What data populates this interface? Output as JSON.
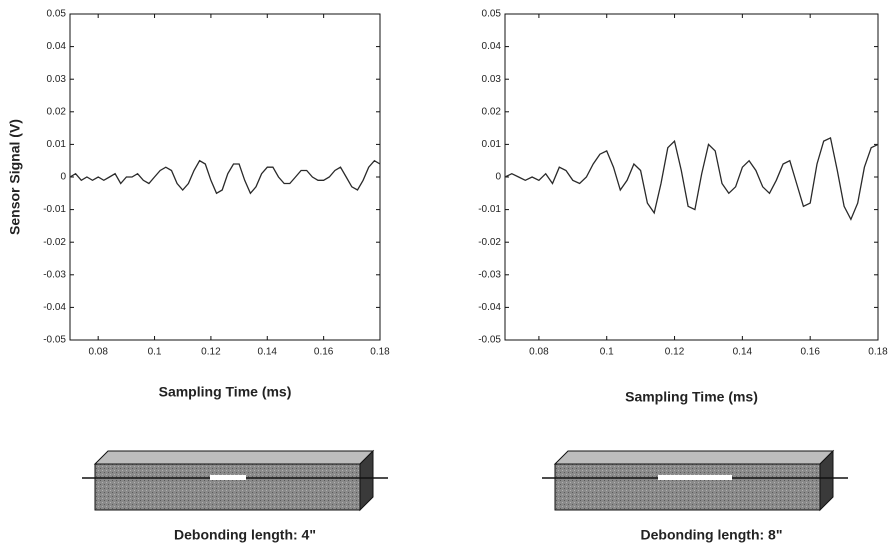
{
  "chart_data": [
    {
      "type": "line",
      "xlabel": "Sampling Time (ms)",
      "ylabel": "Sensor Signal (V)",
      "caption": "Debonding length: 4\"",
      "xlim": [
        0.07,
        0.18
      ],
      "xticks": [
        0.08,
        0.1,
        0.12,
        0.14,
        0.16,
        0.18
      ],
      "ylim": [
        -0.05,
        0.05
      ],
      "yticks": [
        -0.05,
        -0.04,
        -0.03,
        -0.02,
        -0.01,
        0,
        0.01,
        0.02,
        0.03,
        0.04,
        0.05
      ],
      "grid": false,
      "x": [
        0.07,
        0.072,
        0.074,
        0.076,
        0.078,
        0.08,
        0.082,
        0.084,
        0.086,
        0.088,
        0.09,
        0.092,
        0.094,
        0.096,
        0.098,
        0.1,
        0.102,
        0.104,
        0.106,
        0.108,
        0.11,
        0.112,
        0.114,
        0.116,
        0.118,
        0.12,
        0.122,
        0.124,
        0.126,
        0.128,
        0.13,
        0.132,
        0.134,
        0.136,
        0.138,
        0.14,
        0.142,
        0.144,
        0.146,
        0.148,
        0.15,
        0.152,
        0.154,
        0.156,
        0.158,
        0.16,
        0.162,
        0.164,
        0.166,
        0.168,
        0.17,
        0.172,
        0.174,
        0.176,
        0.178,
        0.18
      ],
      "series": [
        {
          "color": "#2a2a2a",
          "values": [
            0,
            0.001,
            -0.001,
            0,
            -0.001,
            0,
            -0.001,
            0,
            0.001,
            -0.002,
            0,
            0,
            0.001,
            -0.001,
            -0.002,
            0,
            0.002,
            0.003,
            0.002,
            -0.002,
            -0.004,
            -0.002,
            0.002,
            0.005,
            0.004,
            -0.001,
            -0.005,
            -0.004,
            0.001,
            0.004,
            0.004,
            -0.001,
            -0.005,
            -0.003,
            0.001,
            0.003,
            0.003,
            0,
            -0.002,
            -0.002,
            0,
            0.002,
            0.002,
            0,
            -0.001,
            -0.001,
            0,
            0.002,
            0.003,
            0,
            -0.003,
            -0.004,
            -0.001,
            0.003,
            0.005,
            0.004
          ]
        }
      ]
    },
    {
      "type": "line",
      "xlabel": "Sampling Time (ms)",
      "caption": "Debonding length: 8\"",
      "xlim": [
        0.07,
        0.18
      ],
      "xticks": [
        0.08,
        0.1,
        0.12,
        0.14,
        0.16,
        0.18
      ],
      "ylim": [
        -0.05,
        0.05
      ],
      "yticks": [
        -0.05,
        -0.04,
        -0.03,
        -0.02,
        -0.01,
        0,
        0.01,
        0.02,
        0.03,
        0.04,
        0.05
      ],
      "grid": false,
      "x": [
        0.07,
        0.072,
        0.074,
        0.076,
        0.078,
        0.08,
        0.082,
        0.084,
        0.086,
        0.088,
        0.09,
        0.092,
        0.094,
        0.096,
        0.098,
        0.1,
        0.102,
        0.104,
        0.106,
        0.108,
        0.11,
        0.112,
        0.114,
        0.116,
        0.118,
        0.12,
        0.122,
        0.124,
        0.126,
        0.128,
        0.13,
        0.132,
        0.134,
        0.136,
        0.138,
        0.14,
        0.142,
        0.144,
        0.146,
        0.148,
        0.15,
        0.152,
        0.154,
        0.156,
        0.158,
        0.16,
        0.162,
        0.164,
        0.166,
        0.168,
        0.17,
        0.172,
        0.174,
        0.176,
        0.178,
        0.18
      ],
      "series": [
        {
          "color": "#2a2a2a",
          "values": [
            0,
            0.001,
            0,
            -0.001,
            0,
            -0.001,
            0.001,
            -0.002,
            0.003,
            0.002,
            -0.001,
            -0.002,
            0,
            0.004,
            0.007,
            0.008,
            0.003,
            -0.004,
            -0.001,
            0.004,
            0.002,
            -0.008,
            -0.011,
            -0.002,
            0.009,
            0.011,
            0.002,
            -0.009,
            -0.01,
            0.001,
            0.01,
            0.008,
            -0.002,
            -0.005,
            -0.003,
            0.003,
            0.005,
            0.002,
            -0.003,
            -0.005,
            -0.001,
            0.004,
            0.005,
            -0.002,
            -0.009,
            -0.008,
            0.004,
            0.011,
            0.012,
            0.002,
            -0.009,
            -0.013,
            -0.008,
            0.003,
            0.009,
            0.01
          ]
        }
      ]
    }
  ]
}
